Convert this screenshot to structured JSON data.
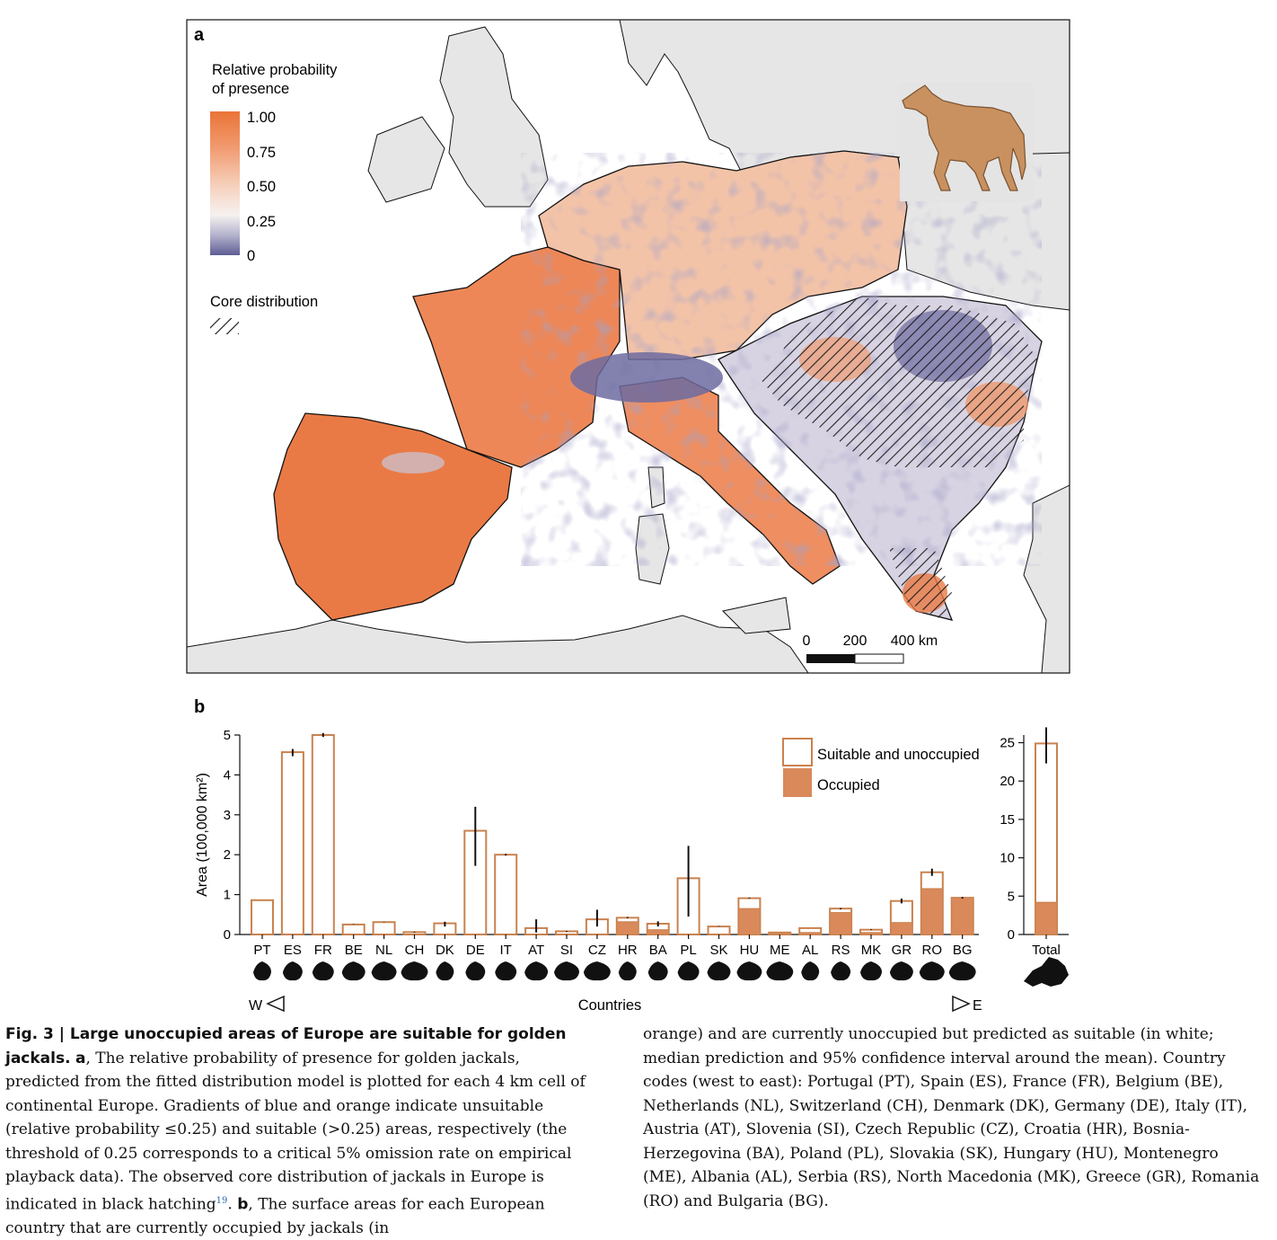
{
  "panel_a": {
    "label": "a",
    "legend_title_line1": "Relative probability",
    "legend_title_line2": "of presence",
    "legend_ticks": [
      "1.00",
      "0.75",
      "0.50",
      "0.25",
      "0"
    ],
    "core_label": "Core distribution",
    "scale_labels": [
      "0",
      "200",
      "400 km"
    ],
    "colors": {
      "high": "#ea7438",
      "mid": "#f7f1ee",
      "low": "#5e5d95",
      "sea": "#ffffff",
      "land_outside": "#e6e6e6",
      "jackal": "#c99160"
    }
  },
  "panel_b": {
    "label": "b",
    "legend_suitable": "Suitable and unoccupied",
    "legend_occupied": "Occupied",
    "x_axis_label": "Countries",
    "west_label": "W",
    "east_label": "E",
    "colors": {
      "bar_outline": "#c9824f",
      "occupied": "#d9895a"
    }
  },
  "chart_data": [
    {
      "type": "bar",
      "stacked": true,
      "ylabel": "Area (100,000 km²)",
      "xlabel": "Countries",
      "ylim": [
        0,
        5
      ],
      "yticks": [
        0,
        1,
        2,
        3,
        4,
        5
      ],
      "categories": [
        "PT",
        "ES",
        "FR",
        "BE",
        "NL",
        "CH",
        "DK",
        "DE",
        "IT",
        "AT",
        "SI",
        "CZ",
        "HR",
        "BA",
        "PL",
        "SK",
        "HU",
        "ME",
        "AL",
        "RS",
        "MK",
        "GR",
        "RO",
        "BG"
      ],
      "series": [
        {
          "name": "Occupied",
          "values": [
            0,
            0,
            0,
            0,
            0,
            0,
            0,
            0,
            0,
            0,
            0,
            0,
            0.32,
            0.12,
            0,
            0,
            0.65,
            0.04,
            0.05,
            0.55,
            0.05,
            0.3,
            1.15,
            0.92
          ]
        },
        {
          "name": "Suitable and unoccupied",
          "values": [
            0.86,
            4.57,
            5.0,
            0.25,
            0.31,
            0.06,
            0.28,
            2.6,
            2.0,
            0.16,
            0.08,
            0.38,
            0.1,
            0.15,
            1.41,
            0.2,
            0.26,
            0.01,
            0.11,
            0.1,
            0.07,
            0.54,
            0.41,
            0.0
          ]
        }
      ],
      "error_bars": [
        {
          "low": 0.86,
          "high": 0.86
        },
        {
          "low": 4.47,
          "high": 4.65
        },
        {
          "low": 4.95,
          "high": 5.05
        },
        {
          "low": 0.25,
          "high": 0.26
        },
        {
          "low": 0.31,
          "high": 0.32
        },
        {
          "low": 0.05,
          "high": 0.07
        },
        {
          "low": 0.2,
          "high": 0.32
        },
        {
          "low": 1.72,
          "high": 3.2
        },
        {
          "low": 1.98,
          "high": 2.02
        },
        {
          "low": 0.05,
          "high": 0.38
        },
        {
          "low": 0.07,
          "high": 0.09
        },
        {
          "low": 0.2,
          "high": 0.62
        },
        {
          "low": 0.41,
          "high": 0.44
        },
        {
          "low": 0.2,
          "high": 0.33
        },
        {
          "low": 0.45,
          "high": 2.22
        },
        {
          "low": 0.2,
          "high": 0.21
        },
        {
          "low": 0.9,
          "high": 0.92
        },
        {
          "low": 0.05,
          "high": 0.05
        },
        {
          "low": 0.16,
          "high": 0.16
        },
        {
          "low": 0.63,
          "high": 0.66
        },
        {
          "low": 0.11,
          "high": 0.13
        },
        {
          "low": 0.78,
          "high": 0.9
        },
        {
          "low": 1.47,
          "high": 1.65
        },
        {
          "low": 0.9,
          "high": 0.94
        }
      ]
    },
    {
      "type": "bar",
      "stacked": true,
      "ylim": [
        0,
        26
      ],
      "yticks": [
        0,
        5,
        10,
        15,
        20,
        25
      ],
      "categories": [
        "Total"
      ],
      "series": [
        {
          "name": "Occupied",
          "values": [
            4.2
          ]
        },
        {
          "name": "Suitable and unoccupied",
          "values": [
            20.7
          ]
        }
      ],
      "error_bars": [
        {
          "low": 22.3,
          "high": 27.0
        }
      ]
    }
  ],
  "caption": {
    "fig_label": "Fig. 3 | Large unoccupied areas of Europe are suitable for golden jackals.",
    "a_label": "a",
    "a_text": ", The relative probability of presence for golden jackals, predicted from the fitted distribution model is plotted for each 4 km cell of continental Europe. Gradients of blue and orange indicate unsuitable (relative probability ≤0.25) and suitable (>0.25) areas, respectively (the threshold of 0.25 corresponds to a critical 5% omission rate on empirical playback data). The observed core distribution of jackals in Europe is indicated in black hatching",
    "ref": "19",
    "b_label": "b",
    "b_text": ", The surface areas for each European country that are currently occupied by jackals (in",
    "right_text": "orange) and are currently unoccupied but predicted as suitable (in white; median prediction and 95% confidence interval around the mean). Country codes (west to east): Portugal (PT), Spain (ES), France (FR), Belgium (BE), Netherlands (NL), Switzerland (CH), Denmark (DK), Germany (DE), Italy (IT), Austria (AT), Slovenia (SI), Czech Republic (CZ), Croatia (HR), Bosnia-Herzegovina (BA), Poland (PL), Slovakia (SK), Hungary (HU), Montenegro (ME), Albania (AL), Serbia (RS), North Macedonia (MK), Greece (GR), Romania (RO) and Bulgaria (BG)."
  }
}
